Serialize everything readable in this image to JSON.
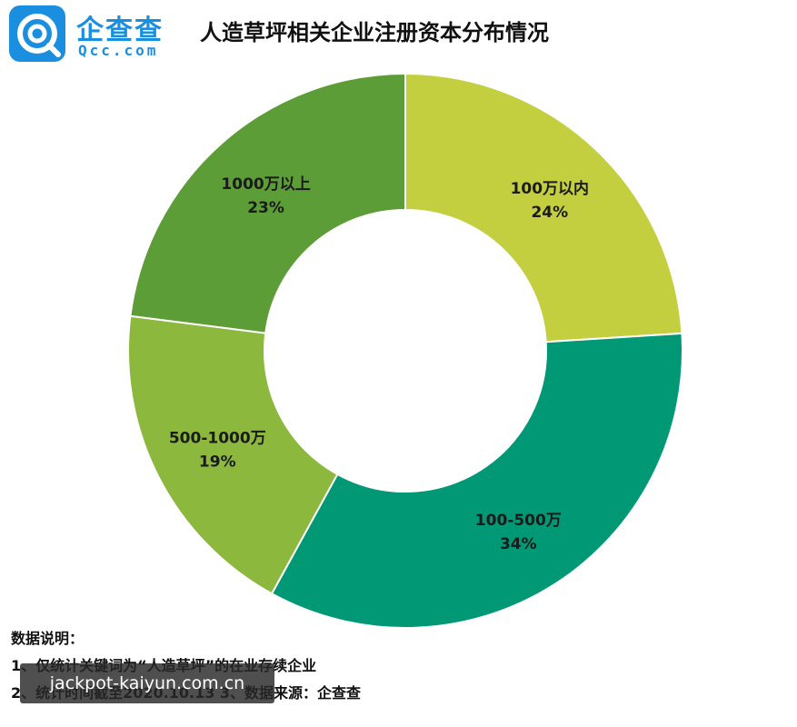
{
  "header": {
    "logo_text": "企查查",
    "logo_sub": "Qcc.com",
    "title": "人造草坪相关企业注册资本分布情况"
  },
  "chart_data": {
    "type": "pie",
    "title": "人造草坪相关企业注册资本分布情况",
    "donut": true,
    "slices": [
      {
        "label": "100万以内",
        "value": 24,
        "display": "24%",
        "color": "#c3cf3f"
      },
      {
        "label": "100-500万",
        "value": 34,
        "display": "34%",
        "color": "#009875"
      },
      {
        "label": "500-1000万",
        "value": 19,
        "display": "19%",
        "color": "#8db83e"
      },
      {
        "label": "1000万以上",
        "value": 23,
        "display": "23%",
        "color": "#5d9d37"
      }
    ]
  },
  "notes": {
    "heading": "数据说明：",
    "line1": "1、仅统计关键词为“人造草坪”的在业存续企业",
    "line2": "2、统计时间截至2020.10.13   3、数据来源：企查查"
  },
  "watermark": "jackpot-kaiyun.com.cn",
  "colors": {
    "brand": "#1a8fe0"
  }
}
